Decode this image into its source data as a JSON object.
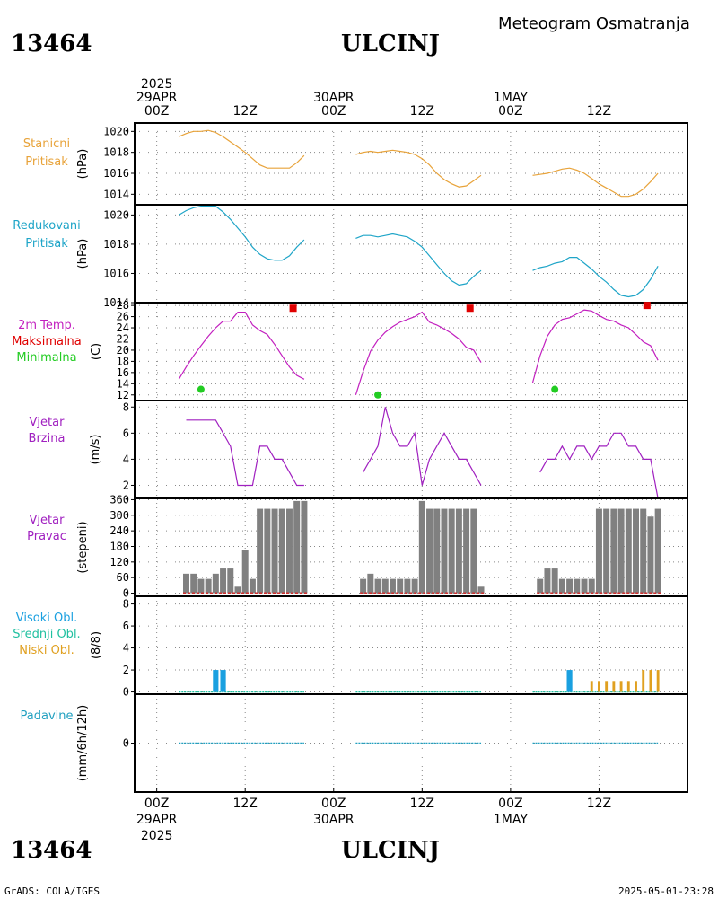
{
  "header": {
    "station_id": "13464",
    "station_name": "ULCINJ",
    "chart_title": "Meteogram Osmatranja"
  },
  "footer": {
    "station_id": "13464",
    "station_name": "ULCINJ",
    "credit": "GrADS: COLA/IGES",
    "timestamp": "2025-05-01-23:28"
  },
  "time_axis": {
    "top_year": "2025",
    "ticks": [
      {
        "hour": 0,
        "top": "00Z",
        "bottom": "00Z",
        "date": "29APR",
        "year": "2025"
      },
      {
        "hour": 12,
        "top": "12Z",
        "bottom": "12Z",
        "date": "",
        "year": ""
      },
      {
        "hour": 24,
        "top": "00Z",
        "bottom": "00Z",
        "date": "30APR",
        "year": ""
      },
      {
        "hour": 36,
        "top": "12Z",
        "bottom": "12Z",
        "date": "",
        "year": ""
      },
      {
        "hour": 48,
        "top": "00Z",
        "bottom": "00Z",
        "date": "1MAY",
        "year": ""
      },
      {
        "hour": 60,
        "top": "12Z",
        "bottom": "12Z",
        "date": "",
        "year": ""
      }
    ],
    "top_labels": [
      {
        "hour": 0,
        "lines": [
          "2025",
          "29APR",
          "00Z"
        ]
      },
      {
        "hour": 12,
        "lines": [
          "12Z"
        ]
      },
      {
        "hour": 24,
        "lines": [
          "30APR",
          "00Z"
        ]
      },
      {
        "hour": 36,
        "lines": [
          "12Z"
        ]
      },
      {
        "hour": 48,
        "lines": [
          "1MAY",
          "00Z"
        ]
      },
      {
        "hour": 60,
        "lines": [
          "12Z"
        ]
      }
    ],
    "bottom_labels": [
      {
        "hour": 0,
        "lines": [
          "00Z",
          "29APR",
          "2025"
        ]
      },
      {
        "hour": 12,
        "lines": [
          "12Z"
        ]
      },
      {
        "hour": 24,
        "lines": [
          "00Z",
          "30APR"
        ]
      },
      {
        "hour": 36,
        "lines": [
          "12Z"
        ]
      },
      {
        "hour": 48,
        "lines": [
          "00Z",
          "1MAY"
        ]
      },
      {
        "hour": 60,
        "lines": [
          "12Z"
        ]
      }
    ]
  },
  "colors": {
    "pressure_station": "#e8a33a",
    "pressure_reduced": "#1fa5c8",
    "temperature": "#c21fbf",
    "temp_max": "#e00000",
    "temp_min": "#22cc22",
    "wind": "#a020c0",
    "bars": "#808080",
    "bar_base": "#d03030",
    "cloud_high": "#1aa0e0",
    "cloud_mid": "#20c0a0",
    "cloud_low": "#e0a020",
    "precip": "#20a0c0",
    "grid": "#888888"
  },
  "chart_data": [
    {
      "type": "line",
      "panel": "station_pressure",
      "labels": [
        "Stanicni",
        "Pritisak"
      ],
      "ylabel": "(hPa)",
      "ylim": [
        1013,
        1020.8
      ],
      "yticks": [
        1014,
        1016,
        1018,
        1020
      ],
      "series": [
        {
          "segment": 1,
          "x": [
            3,
            4,
            5,
            6,
            7,
            8,
            9,
            10,
            11,
            12,
            13,
            14,
            15,
            16,
            17,
            18,
            19,
            20
          ],
          "y": [
            1019.5,
            1019.8,
            1020.0,
            1020.0,
            1020.1,
            1019.9,
            1019.5,
            1019.0,
            1018.5,
            1018.0,
            1017.4,
            1016.8,
            1016.5,
            1016.5,
            1016.5,
            1016.5,
            1017.0,
            1017.7
          ]
        },
        {
          "segment": 2,
          "x": [
            27,
            28,
            29,
            30,
            31,
            32,
            33,
            34,
            35,
            36,
            37,
            38,
            39,
            40,
            41,
            42,
            43,
            44
          ],
          "y": [
            1017.8,
            1018.0,
            1018.1,
            1018.0,
            1018.1,
            1018.2,
            1018.1,
            1018.0,
            1017.8,
            1017.4,
            1016.8,
            1016.0,
            1015.4,
            1015.0,
            1014.7,
            1014.8,
            1015.3,
            1015.8
          ]
        },
        {
          "segment": 3,
          "x": [
            51,
            52,
            53,
            54,
            55,
            56,
            57,
            58,
            59,
            60,
            61,
            62,
            63,
            64,
            65,
            66,
            67,
            68
          ],
          "y": [
            1015.8,
            1015.9,
            1016.0,
            1016.2,
            1016.4,
            1016.5,
            1016.3,
            1016.0,
            1015.5,
            1015.0,
            1014.6,
            1014.2,
            1013.8,
            1013.8,
            1014.0,
            1014.5,
            1015.2,
            1016.0
          ]
        }
      ]
    },
    {
      "type": "line",
      "panel": "reduced_pressure",
      "labels": [
        "Redukovani",
        "Pritisak"
      ],
      "ylabel": "(hPa)",
      "ylim": [
        1014,
        1020.7
      ],
      "yticks": [
        1014,
        1016,
        1018,
        1020
      ],
      "series": [
        {
          "segment": 1,
          "x": [
            3,
            4,
            5,
            6,
            7,
            8,
            9,
            10,
            11,
            12,
            13,
            14,
            15,
            16,
            17,
            18,
            19,
            20
          ],
          "y": [
            1020.0,
            1020.3,
            1020.5,
            1020.6,
            1020.6,
            1020.6,
            1020.2,
            1019.7,
            1019.1,
            1018.5,
            1017.8,
            1017.3,
            1017.0,
            1016.9,
            1016.9,
            1017.2,
            1017.8,
            1018.3
          ]
        },
        {
          "segment": 2,
          "x": [
            27,
            28,
            29,
            30,
            31,
            32,
            33,
            34,
            35,
            36,
            37,
            38,
            39,
            40,
            41,
            42,
            43,
            44
          ],
          "y": [
            1018.4,
            1018.6,
            1018.6,
            1018.5,
            1018.6,
            1018.7,
            1018.6,
            1018.5,
            1018.2,
            1017.8,
            1017.2,
            1016.6,
            1016.0,
            1015.5,
            1015.2,
            1015.3,
            1015.8,
            1016.2
          ]
        },
        {
          "segment": 3,
          "x": [
            51,
            52,
            53,
            54,
            55,
            56,
            57,
            58,
            59,
            60,
            61,
            62,
            63,
            64,
            65,
            66,
            67,
            68
          ],
          "y": [
            1016.2,
            1016.4,
            1016.5,
            1016.7,
            1016.8,
            1017.1,
            1017.1,
            1016.7,
            1016.3,
            1015.8,
            1015.4,
            1014.9,
            1014.5,
            1014.4,
            1014.5,
            1014.9,
            1015.6,
            1016.5
          ]
        }
      ]
    },
    {
      "type": "line",
      "panel": "temperature",
      "labels": [
        "2m Temp.",
        "Maksimalna",
        "Minimalna"
      ],
      "ylabel": "(C)",
      "ylim": [
        11,
        28.5
      ],
      "yticks": [
        12,
        14,
        16,
        18,
        20,
        22,
        24,
        26,
        28
      ],
      "series": [
        {
          "segment": 1,
          "x": [
            3,
            4,
            5,
            6,
            7,
            8,
            9,
            10,
            11,
            12,
            13,
            14,
            15,
            16,
            17,
            18,
            19,
            20
          ],
          "y": [
            14.8,
            17.0,
            19.0,
            20.8,
            22.5,
            24.0,
            25.2,
            25.2,
            26.8,
            26.8,
            24.5,
            23.5,
            22.8,
            21.0,
            19.0,
            17.0,
            15.5,
            14.8
          ]
        },
        {
          "segment": 2,
          "x": [
            27,
            28,
            29,
            30,
            31,
            32,
            33,
            34,
            35,
            36,
            37,
            38,
            39,
            40,
            41,
            42,
            43,
            44
          ],
          "y": [
            12.0,
            16.2,
            19.8,
            21.8,
            23.2,
            24.2,
            25.0,
            25.5,
            26.0,
            26.8,
            25.0,
            24.5,
            23.8,
            23.0,
            22.0,
            20.5,
            20.0,
            17.8
          ]
        },
        {
          "segment": 3,
          "x": [
            51,
            52,
            53,
            54,
            55,
            56,
            57,
            58,
            59,
            60,
            61,
            62,
            63,
            64,
            65,
            66,
            67,
            68
          ],
          "y": [
            14.2,
            19.0,
            22.5,
            24.5,
            25.5,
            25.8,
            26.5,
            27.2,
            27.0,
            26.2,
            25.5,
            25.2,
            24.5,
            24.0,
            22.8,
            21.5,
            20.8,
            18.2
          ]
        }
      ],
      "max_points": [
        {
          "x": 18.5,
          "y": 27.5
        },
        {
          "x": 42.5,
          "y": 27.5
        },
        {
          "x": 66.5,
          "y": 28.0
        }
      ],
      "min_points": [
        {
          "x": 6.0,
          "y": 13.0
        },
        {
          "x": 30.0,
          "y": 12.0
        },
        {
          "x": 54.0,
          "y": 13.0
        }
      ]
    },
    {
      "type": "line",
      "panel": "wind_speed",
      "labels": [
        "Vjetar",
        "Brzina"
      ],
      "ylabel": "(m/s)",
      "ylim": [
        1,
        8.5
      ],
      "yticks": [
        2,
        4,
        6,
        8
      ],
      "series": [
        {
          "segment": 1,
          "x": [
            4,
            5,
            6,
            7,
            8,
            9,
            10,
            11,
            12,
            13,
            14,
            15,
            16,
            17,
            18,
            19,
            20
          ],
          "y": [
            7,
            7,
            7,
            7,
            7,
            6,
            5,
            2,
            2,
            2,
            5,
            5,
            4,
            4,
            3,
            2,
            2
          ]
        },
        {
          "segment": 2,
          "x": [
            28,
            29,
            30,
            31,
            32,
            33,
            34,
            35,
            36,
            37,
            38,
            39,
            40,
            41,
            42,
            43,
            44
          ],
          "y": [
            3,
            4,
            5,
            8,
            6,
            5,
            5,
            6,
            2,
            4,
            5,
            6,
            5,
            4,
            4,
            3,
            2
          ]
        },
        {
          "segment": 3,
          "x": [
            52,
            53,
            54,
            55,
            56,
            57,
            58,
            59,
            60,
            61,
            62,
            63,
            64,
            65,
            66,
            67,
            68
          ],
          "y": [
            3,
            4,
            4,
            5,
            4,
            5,
            5,
            4,
            5,
            5,
            6,
            6,
            5,
            5,
            4,
            4,
            1
          ]
        }
      ]
    },
    {
      "type": "bar",
      "panel": "wind_direction",
      "labels": [
        "Vjetar",
        "Pravac"
      ],
      "ylabel": "(stepeni)",
      "ylim": [
        -12,
        365
      ],
      "yticks": [
        0,
        60,
        120,
        180,
        240,
        300,
        360
      ],
      "series": [
        {
          "segment": 1,
          "x": [
            4,
            5,
            6,
            7,
            8,
            9,
            10,
            11,
            12,
            13,
            14,
            15,
            16,
            17,
            18,
            19,
            20
          ],
          "y": [
            75,
            75,
            55,
            55,
            75,
            95,
            95,
            25,
            165,
            55,
            325,
            325,
            325,
            325,
            325,
            355,
            355
          ]
        },
        {
          "segment": 2,
          "x": [
            28,
            29,
            30,
            31,
            32,
            33,
            34,
            35,
            36,
            37,
            38,
            39,
            40,
            41,
            42,
            43,
            44
          ],
          "y": [
            55,
            75,
            55,
            55,
            55,
            55,
            55,
            55,
            355,
            325,
            325,
            325,
            325,
            325,
            325,
            325,
            25
          ]
        },
        {
          "segment": 3,
          "x": [
            52,
            53,
            54,
            55,
            56,
            57,
            58,
            59,
            60,
            61,
            62,
            63,
            64,
            65,
            66,
            67,
            68
          ],
          "y": [
            55,
            95,
            95,
            55,
            55,
            55,
            55,
            55,
            325,
            325,
            325,
            325,
            325,
            325,
            325,
            295,
            325
          ]
        }
      ]
    },
    {
      "type": "bar",
      "panel": "clouds",
      "labels": [
        "Visoki Obl.",
        "Srednji Obl.",
        "Niski Obl."
      ],
      "ylabel": "(8/8)",
      "ylim": [
        -0.2,
        8.7
      ],
      "yticks": [
        0,
        2,
        4,
        6,
        8
      ],
      "high": [
        {
          "x": 8,
          "y": 2
        },
        {
          "x": 9,
          "y": 2
        },
        {
          "x": 56,
          "y": 2
        }
      ],
      "low": [
        {
          "x": 59,
          "y": 1
        },
        {
          "x": 60,
          "y": 1
        },
        {
          "x": 61,
          "y": 1
        },
        {
          "x": 62,
          "y": 1
        },
        {
          "x": 63,
          "y": 1
        },
        {
          "x": 64,
          "y": 1
        },
        {
          "x": 65,
          "y": 1
        },
        {
          "x": 66,
          "y": 2
        },
        {
          "x": 67,
          "y": 2
        },
        {
          "x": 68,
          "y": 2
        }
      ],
      "baseline_segments": [
        [
          3,
          20
        ],
        [
          27,
          44
        ],
        [
          51,
          68
        ]
      ]
    },
    {
      "type": "bar",
      "panel": "precipitation",
      "labels": [
        "Padavine"
      ],
      "ylabel": "(mm/6h/12h)",
      "ylim": [
        -1,
        1
      ],
      "yticks": [
        0
      ],
      "baseline_segments": [
        [
          3,
          20
        ],
        [
          27,
          44
        ],
        [
          51,
          68
        ]
      ]
    }
  ]
}
